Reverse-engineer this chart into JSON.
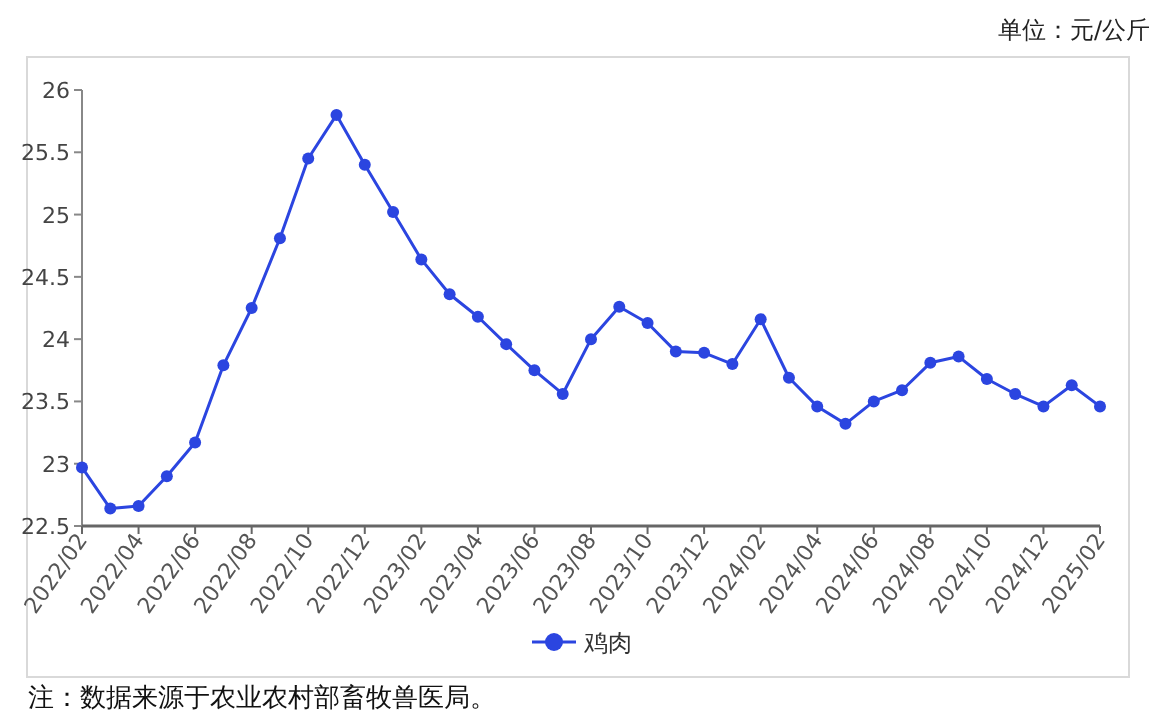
{
  "chart_data": {
    "type": "line",
    "ylabel": "单位：元/公斤",
    "categories": [
      "2022/02",
      null,
      "2022/04",
      null,
      "2022/06",
      null,
      "2022/08",
      null,
      "2022/10",
      null,
      "2022/12",
      null,
      "2023/02",
      null,
      "2023/04",
      null,
      "2023/06",
      null,
      "2023/08",
      null,
      "2023/10",
      null,
      "2023/12",
      null,
      "2024/02",
      null,
      "2024/04",
      null,
      "2024/06",
      null,
      "2024/08",
      null,
      "2024/10",
      null,
      "2024/12",
      null,
      "2025/02"
    ],
    "series": [
      {
        "name": "鸡肉",
        "color": "#2b45e0",
        "values": [
          22.97,
          22.64,
          22.66,
          22.9,
          23.17,
          23.79,
          24.25,
          24.81,
          25.45,
          25.8,
          25.4,
          25.02,
          24.64,
          24.36,
          24.18,
          23.96,
          23.75,
          23.56,
          24.0,
          24.26,
          24.13,
          23.9,
          23.89,
          23.8,
          24.16,
          23.69,
          23.46,
          23.32,
          23.5,
          23.59,
          23.81,
          23.86,
          23.68,
          23.56,
          23.46,
          23.63,
          23.46
        ]
      }
    ],
    "ylim": [
      22.5,
      26
    ],
    "yticks": [
      22.5,
      23,
      23.5,
      24,
      24.5,
      25,
      25.5,
      26
    ],
    "marker": "circle",
    "legend": "bottom",
    "grid": false,
    "annotations": [
      "注：数据来源于农业农村部畜牧兽医局。"
    ]
  }
}
